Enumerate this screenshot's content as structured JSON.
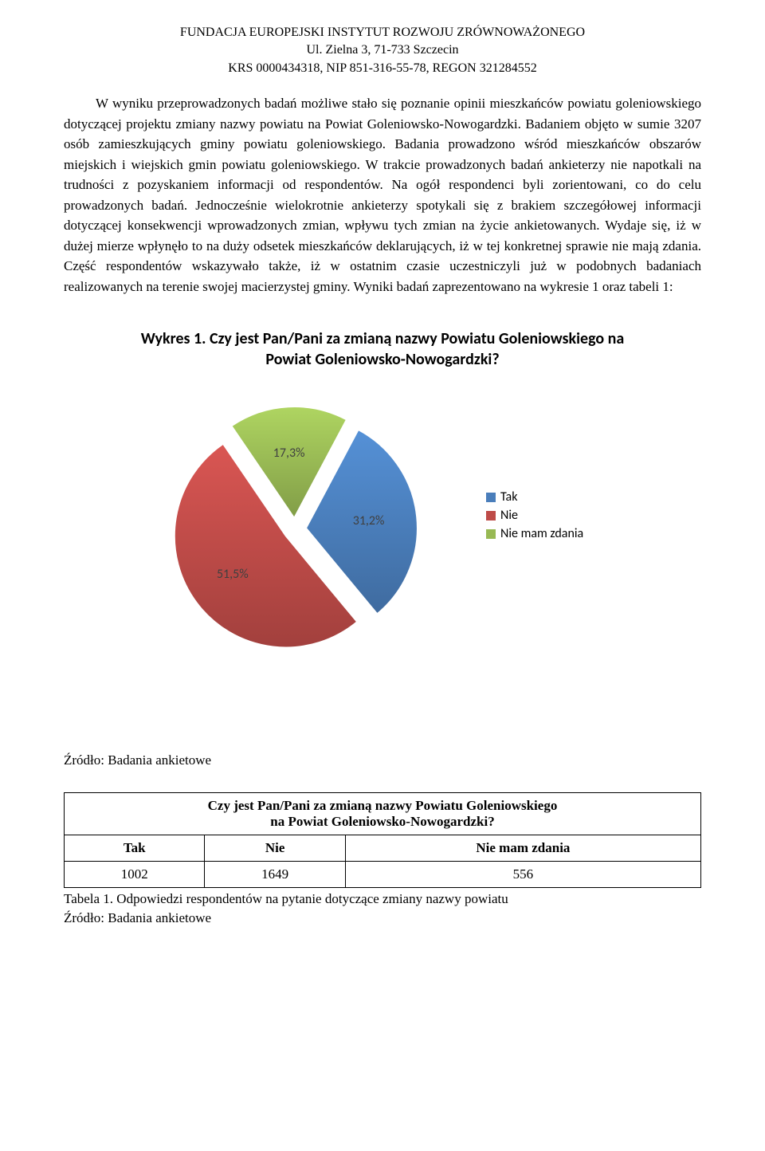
{
  "header": {
    "line1": "FUNDACJA EUROPEJSKI INSTYTUT ROZWOJU ZRÓWNOWAŻONEGO",
    "line2": "Ul. Zielna 3, 71-733 Szczecin",
    "line3": "KRS 0000434318, NIP 851-316-55-78, REGON 321284552"
  },
  "paragraph": "W wyniku przeprowadzonych badań możliwe stało się poznanie opinii mieszkańców powiatu goleniowskiego dotyczącej projektu zmiany nazwy powiatu na Powiat Goleniowsko-Nowogardzki. Badaniem objęto w sumie 3207 osób zamieszkujących gminy powiatu goleniowskiego. Badania prowadzono wśród mieszkańców obszarów miejskich i wiejskich gmin powiatu goleniowskiego. W trakcie prowadzonych badań ankieterzy nie napotkali na trudności z pozyskaniem informacji od respondentów. Na ogół respondenci byli zorientowani, co do celu prowadzonych badań. Jednocześnie wielokrotnie ankieterzy spotykali się z brakiem szczegółowej informacji dotyczącej konsekwencji wprowadzonych zmian, wpływu tych zmian na życie ankietowanych. Wydaje się, iż w dużej mierze wpłynęło to na duży odsetek mieszkańców deklarujących, iż w tej konkretnej sprawie nie mają zdania. Część respondentów wskazywało także, iż w ostatnim czasie uczestniczyli już w podobnych badaniach realizowanych na terenie swojej macierzystej gminy. Wyniki badań zaprezentowano na wykresie 1 oraz tabeli 1:",
  "chart": {
    "type": "pie",
    "title": "Wykres 1. Czy jest Pan/Pani za zmianą nazwy Powiatu Goleniowskiego na Powiat Goleniowsko-Nowogardzki?",
    "slices": [
      {
        "label": "Tak",
        "value": 31.2,
        "display": "31,2%",
        "color": "#4a7ebb"
      },
      {
        "label": "Nie",
        "value": 51.5,
        "display": "51,5%",
        "color": "#be4b48"
      },
      {
        "label": "Nie mam zdania",
        "value": 17.3,
        "display": "17,3%",
        "color": "#98b954"
      }
    ],
    "explode_gap": 14,
    "stroke": "#ffffff",
    "stroke_width": 2,
    "label_font": "Calibri",
    "label_fontsize": 16,
    "label_color": "#404040",
    "background": "#ffffff",
    "start_angle_deg": -62
  },
  "source_text": "Źródło: Badania ankietowe",
  "table": {
    "question_line1": "Czy jest Pan/Pani za zmianą nazwy Powiatu Goleniowskiego",
    "question_line2": "na Powiat Goleniowsko-Nowogardzki?",
    "headers": [
      "Tak",
      "Nie",
      "Nie mam zdania"
    ],
    "row": [
      "1002",
      "1649",
      "556"
    ],
    "caption": "Tabela 1. Odpowiedzi respondentów na pytanie dotyczące zmiany nazwy powiatu",
    "caption2": "Źródło: Badania ankietowe"
  }
}
